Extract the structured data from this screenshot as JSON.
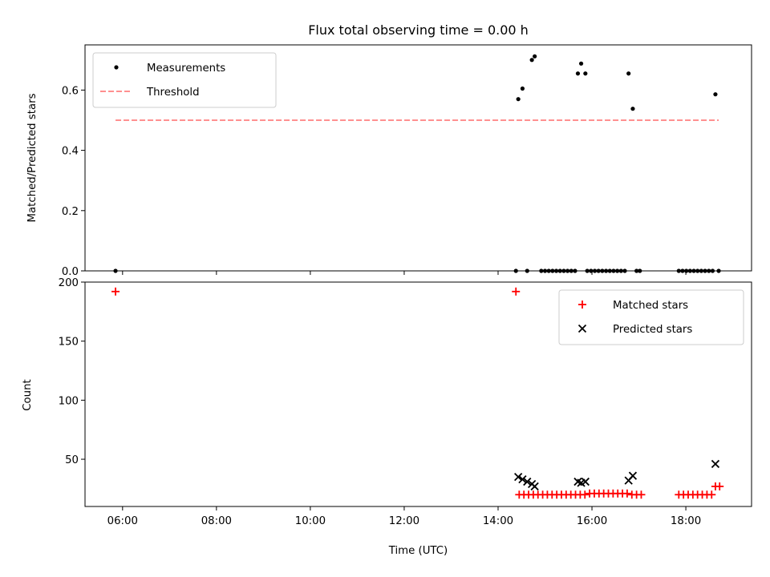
{
  "chart_data": {
    "type": "scatter",
    "title": "Flux total observing time = 0.00 h",
    "xlabel": "Time (UTC)",
    "xlim": [
      5.2,
      19.4
    ],
    "xticks": [
      {
        "value": 6,
        "label": "06:00"
      },
      {
        "value": 8,
        "label": "08:00"
      },
      {
        "value": 10,
        "label": "10:00"
      },
      {
        "value": 12,
        "label": "12:00"
      },
      {
        "value": 14,
        "label": "14:00"
      },
      {
        "value": 16,
        "label": "16:00"
      },
      {
        "value": 18,
        "label": "18:00"
      }
    ],
    "panels": [
      {
        "ylabel": "Matched/Predicted stars",
        "ylim": [
          0,
          0.75
        ],
        "yticks": [
          {
            "value": 0.0,
            "label": "0.0"
          },
          {
            "value": 0.2,
            "label": "0.2"
          },
          {
            "value": 0.4,
            "label": "0.4"
          },
          {
            "value": 0.6,
            "label": "0.6"
          }
        ],
        "legend": "top-left",
        "series": [
          {
            "name": "Measurements",
            "type": "scatter",
            "marker": "dot",
            "color": "#000000",
            "x": [
              5.85,
              14.38,
              14.43,
              14.52,
              14.62,
              14.72,
              14.78,
              14.92,
              15.0,
              15.08,
              15.16,
              15.24,
              15.32,
              15.4,
              15.48,
              15.56,
              15.64,
              15.7,
              15.77,
              15.86,
              15.9,
              15.98,
              16.06,
              16.14,
              16.22,
              16.3,
              16.38,
              16.46,
              16.54,
              16.62,
              16.7,
              16.78,
              16.87,
              16.95,
              17.02,
              17.85,
              17.93,
              18.01,
              18.09,
              18.17,
              18.25,
              18.33,
              18.41,
              18.49,
              18.57,
              18.63,
              18.7
            ],
            "y": [
              0.0,
              0.0,
              0.57,
              0.605,
              0.0,
              0.7,
              0.712,
              0.0,
              0.0,
              0.0,
              0.0,
              0.0,
              0.0,
              0.0,
              0.0,
              0.0,
              0.0,
              0.655,
              0.688,
              0.655,
              0.0,
              0.0,
              0.0,
              0.0,
              0.0,
              0.0,
              0.0,
              0.0,
              0.0,
              0.0,
              0.0,
              0.655,
              0.538,
              0.0,
              0.0,
              0.0,
              0.0,
              0.0,
              0.0,
              0.0,
              0.0,
              0.0,
              0.0,
              0.0,
              0.0,
              0.586,
              0.0
            ]
          },
          {
            "name": "Threshold",
            "type": "line",
            "style": "dashed",
            "color": "#ff8080",
            "x": [
              5.85,
              18.7
            ],
            "y": [
              0.5,
              0.5
            ]
          }
        ]
      },
      {
        "ylabel": "Count",
        "ylim": [
          10,
          200
        ],
        "yticks": [
          {
            "value": 50,
            "label": "50"
          },
          {
            "value": 100,
            "label": "100"
          },
          {
            "value": 150,
            "label": "150"
          },
          {
            "value": 200,
            "label": "200"
          }
        ],
        "legend": "top-right",
        "series": [
          {
            "name": "Matched stars",
            "type": "scatter",
            "marker": "plus",
            "color": "#ff0000",
            "x": [
              5.85,
              14.38,
              14.45,
              14.55,
              14.65,
              14.75,
              14.85,
              14.95,
              15.05,
              15.15,
              15.25,
              15.35,
              15.45,
              15.55,
              15.65,
              15.75,
              15.85,
              15.95,
              16.05,
              16.15,
              16.25,
              16.35,
              16.45,
              16.55,
              16.65,
              16.75,
              16.85,
              16.95,
              17.05,
              17.85,
              17.95,
              18.05,
              18.15,
              18.25,
              18.35,
              18.45,
              18.55,
              18.63,
              18.72
            ],
            "y": [
              192,
              192,
              20,
              20,
              20,
              20,
              20,
              20,
              20,
              20,
              20,
              20,
              20,
              20,
              20,
              20,
              20,
              21,
              21,
              21,
              21,
              21,
              21,
              21,
              21,
              21,
              20,
              20,
              20,
              20,
              20,
              20,
              20,
              20,
              20,
              20,
              20,
              27,
              27
            ]
          },
          {
            "name": "Predicted stars",
            "type": "scatter",
            "marker": "x",
            "color": "#000000",
            "x": [
              14.43,
              14.52,
              14.62,
              14.72,
              14.78,
              15.7,
              15.77,
              15.86,
              16.78,
              16.87,
              18.63
            ],
            "y": [
              35,
              33,
              31,
              29,
              27,
              31,
              30,
              31,
              32,
              36,
              46
            ]
          }
        ]
      }
    ]
  }
}
